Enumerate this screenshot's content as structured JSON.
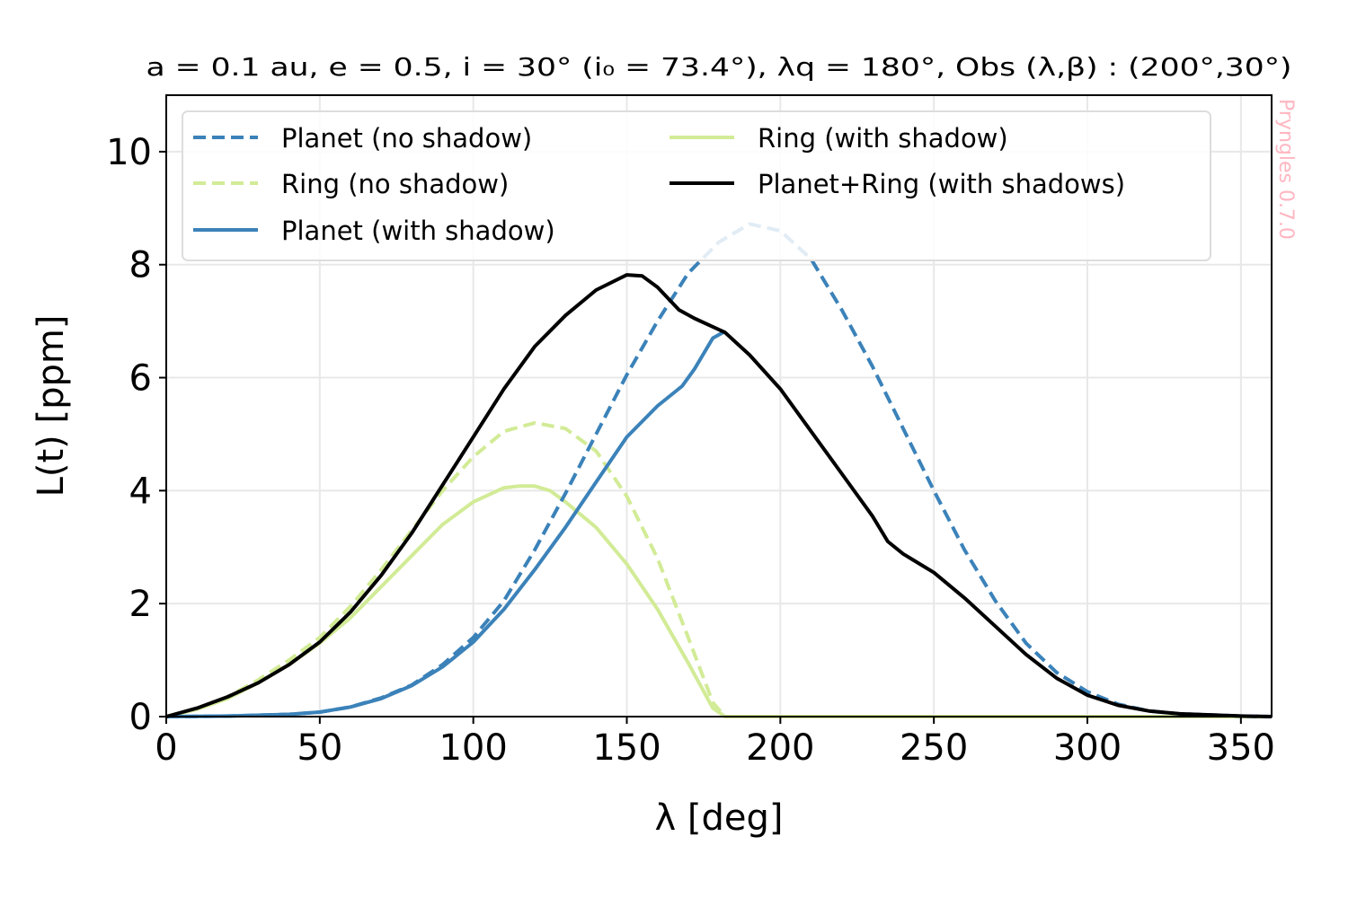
{
  "chart_data": {
    "type": "line",
    "title": "a = 0.1 au, e = 0.5, i = 30° (i₀ = 73.4°), λq = 180°, Obs (λ,β) : (200°,30°)",
    "xlabel": "λ [deg]",
    "ylabel": "L(t) [ppm]",
    "watermark": "Pryngles 0.7.0",
    "xlim": [
      0,
      360
    ],
    "ylim": [
      0,
      11
    ],
    "xticks": [
      0,
      50,
      100,
      150,
      200,
      250,
      300,
      350
    ],
    "yticks": [
      0,
      2,
      4,
      6,
      8,
      10
    ],
    "grid": true,
    "legend_position": "top-left",
    "series": [
      {
        "name": "Planet (no shadow)",
        "color": "#3b82b9",
        "style": "dashed",
        "x": [
          0,
          20,
          40,
          50,
          60,
          70,
          80,
          90,
          100,
          110,
          120,
          130,
          140,
          150,
          160,
          170,
          180,
          190,
          200,
          210,
          220,
          230,
          240,
          250,
          260,
          270,
          280,
          290,
          300,
          310,
          320,
          330,
          340,
          350,
          360
        ],
        "y": [
          0.0,
          0.01,
          0.04,
          0.08,
          0.17,
          0.33,
          0.56,
          0.92,
          1.4,
          2.05,
          2.95,
          3.95,
          5.0,
          6.05,
          7.0,
          7.85,
          8.4,
          8.72,
          8.6,
          8.1,
          7.2,
          6.2,
          5.1,
          4.0,
          2.95,
          2.05,
          1.3,
          0.78,
          0.44,
          0.22,
          0.1,
          0.05,
          0.03,
          0.01,
          0.0
        ]
      },
      {
        "name": "Ring (no shadow)",
        "color": "#d2eb96",
        "style": "dashed",
        "x": [
          0,
          10,
          20,
          30,
          40,
          50,
          60,
          70,
          80,
          90,
          100,
          110,
          120,
          130,
          140,
          150,
          160,
          170,
          178,
          182,
          200,
          250,
          300,
          360
        ],
        "y": [
          0.0,
          0.15,
          0.35,
          0.65,
          1.0,
          1.4,
          1.95,
          2.6,
          3.3,
          4.0,
          4.6,
          5.05,
          5.2,
          5.1,
          4.7,
          3.9,
          2.8,
          1.4,
          0.25,
          0.0,
          0.0,
          0.0,
          0.0,
          0.0
        ]
      },
      {
        "name": "Planet (with shadow)",
        "color": "#3b82b9",
        "style": "solid",
        "x": [
          0,
          20,
          40,
          50,
          60,
          70,
          80,
          90,
          100,
          110,
          120,
          130,
          140,
          150,
          160,
          168,
          172,
          178,
          182
        ],
        "y": [
          0.0,
          0.01,
          0.04,
          0.08,
          0.17,
          0.32,
          0.55,
          0.88,
          1.32,
          1.9,
          2.6,
          3.35,
          4.15,
          4.95,
          5.5,
          5.85,
          6.15,
          6.7,
          6.82
        ]
      },
      {
        "name": "Ring (with shadow)",
        "color": "#d2eb96",
        "style": "solid",
        "x": [
          0,
          10,
          20,
          30,
          40,
          50,
          60,
          70,
          80,
          90,
          100,
          110,
          115,
          120,
          125,
          130,
          140,
          150,
          160,
          170,
          178,
          182,
          200,
          250,
          300,
          360
        ],
        "y": [
          0.0,
          0.13,
          0.32,
          0.6,
          0.92,
          1.3,
          1.75,
          2.3,
          2.85,
          3.4,
          3.8,
          4.05,
          4.08,
          4.08,
          4.0,
          3.8,
          3.35,
          2.7,
          1.9,
          0.95,
          0.15,
          0.0,
          0.0,
          0.0,
          0.0,
          0.0
        ]
      },
      {
        "name": "Planet+Ring (with shadows)",
        "color": "#000000",
        "style": "solid",
        "x": [
          0,
          10,
          20,
          30,
          40,
          50,
          60,
          70,
          80,
          90,
          100,
          110,
          120,
          130,
          140,
          150,
          155,
          160,
          167,
          172,
          178,
          182,
          190,
          200,
          210,
          220,
          230,
          235,
          240,
          250,
          260,
          270,
          280,
          290,
          300,
          310,
          320,
          330,
          340,
          350,
          360
        ],
        "y": [
          0.0,
          0.15,
          0.35,
          0.6,
          0.92,
          1.32,
          1.85,
          2.5,
          3.25,
          4.1,
          4.95,
          5.8,
          6.55,
          7.1,
          7.55,
          7.82,
          7.8,
          7.6,
          7.2,
          7.05,
          6.9,
          6.8,
          6.4,
          5.8,
          5.05,
          4.3,
          3.55,
          3.1,
          2.88,
          2.55,
          2.1,
          1.6,
          1.1,
          0.68,
          0.38,
          0.2,
          0.1,
          0.05,
          0.03,
          0.01,
          0.0
        ]
      }
    ]
  }
}
